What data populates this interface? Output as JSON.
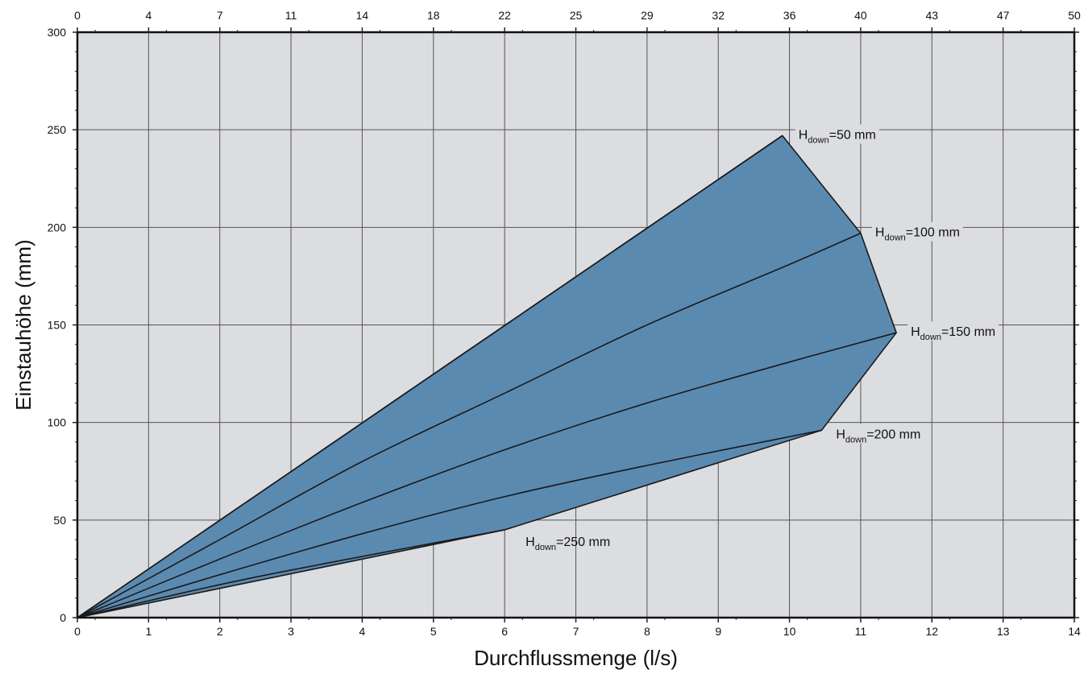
{
  "chart_data": {
    "type": "area",
    "xlabel": "Durchflussmenge (l/s)",
    "ylabel": "Einstauhöhe (mm)",
    "xlim": [
      0,
      14
    ],
    "ylim": [
      0,
      300
    ],
    "x_ticks": [
      "0",
      "1",
      "2",
      "3",
      "4",
      "5",
      "6",
      "7",
      "8",
      "9",
      "10",
      "11",
      "12",
      "13",
      "14"
    ],
    "y_ticks": [
      "0",
      "50",
      "100",
      "150",
      "200",
      "250",
      "300"
    ],
    "secondary_x_ticks": [
      "0",
      "4",
      "7",
      "11",
      "14",
      "18",
      "22",
      "25",
      "29",
      "32",
      "36",
      "40",
      "43",
      "47",
      "50"
    ],
    "grid": true,
    "colors": {
      "fill": "#5b8ab1",
      "plot_background": "#dcdde0",
      "line": "#1a1a1a"
    },
    "envelope": [
      [
        0,
        0
      ],
      [
        9.9,
        247
      ],
      [
        11.0,
        197
      ],
      [
        11.5,
        146
      ],
      [
        10.45,
        96
      ],
      [
        6.0,
        45
      ],
      [
        0,
        0
      ]
    ],
    "series": [
      {
        "label": {
          "base": "H",
          "sub": "down",
          "value": "=50 mm"
        },
        "points": [
          [
            0,
            0
          ],
          [
            9.9,
            247
          ]
        ]
      },
      {
        "label": {
          "base": "H",
          "sub": "down",
          "value": "=100 mm"
        },
        "points": [
          [
            0,
            0
          ],
          [
            2,
            40
          ],
          [
            4,
            80
          ],
          [
            6,
            115
          ],
          [
            8,
            150
          ],
          [
            10,
            181
          ],
          [
            11,
            197
          ]
        ]
      },
      {
        "label": {
          "base": "H",
          "sub": "down",
          "value": "=150 mm"
        },
        "points": [
          [
            0,
            0
          ],
          [
            2,
            30
          ],
          [
            4,
            59
          ],
          [
            6,
            86
          ],
          [
            8,
            110
          ],
          [
            10,
            131
          ],
          [
            11.5,
            146
          ]
        ]
      },
      {
        "label": {
          "base": "H",
          "sub": "down",
          "value": "=200 mm"
        },
        "points": [
          [
            0,
            0
          ],
          [
            2,
            22
          ],
          [
            4,
            43
          ],
          [
            6,
            62
          ],
          [
            8,
            78
          ],
          [
            10.45,
            96
          ]
        ]
      },
      {
        "label": {
          "base": "H",
          "sub": "down",
          "value": "=250 mm"
        },
        "points": [
          [
            0,
            0
          ],
          [
            2.4,
            20
          ],
          [
            6,
            45
          ]
        ]
      }
    ]
  }
}
